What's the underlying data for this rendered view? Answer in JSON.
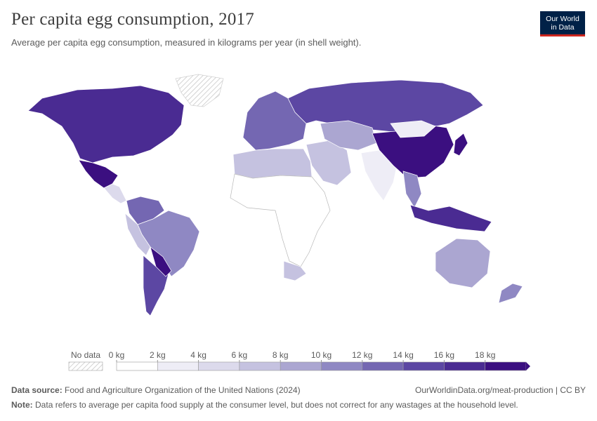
{
  "header": {
    "title": "Per capita egg consumption, 2017",
    "subtitle": "Average per capita egg consumption, measured in kilograms per year (in shell weight).",
    "logo_line1": "Our World",
    "logo_line2": "in Data"
  },
  "legend": {
    "no_data_label": "No data",
    "bins": [
      "0 kg",
      "2 kg",
      "4 kg",
      "6 kg",
      "8 kg",
      "10 kg",
      "12 kg",
      "14 kg",
      "16 kg",
      "18 kg"
    ],
    "colors": [
      "#ffffff",
      "#eeedf6",
      "#dcdaec",
      "#c5c2e0",
      "#aba6d1",
      "#8f88c3",
      "#7467b2",
      "#5c47a3",
      "#4a2b92",
      "#3b0f80"
    ]
  },
  "footer": {
    "source_label": "Data source:",
    "source_text": "Food and Agriculture Organization of the United Nations (2024)",
    "url_text": "OurWorldinData.org/meat-production | CC BY",
    "note_label": "Note:",
    "note_text": "Data refers to average per capita food supply at the consumer level, but does not correct for any wastages at the household level."
  },
  "regions": [
    {
      "name": "canada-usa",
      "level": 8
    },
    {
      "name": "mexico",
      "level": 9
    },
    {
      "name": "greenland",
      "level": -1
    },
    {
      "name": "central-america",
      "level": 2
    },
    {
      "name": "colombia-venezuela",
      "level": 6
    },
    {
      "name": "brazil",
      "level": 5
    },
    {
      "name": "peru-bolivia",
      "level": 3
    },
    {
      "name": "argentina",
      "level": 7
    },
    {
      "name": "paraguay",
      "level": 9
    },
    {
      "name": "europe",
      "level": 6
    },
    {
      "name": "russia",
      "level": 7
    },
    {
      "name": "north-africa",
      "level": 3
    },
    {
      "name": "sub-saharan-africa",
      "level": 0
    },
    {
      "name": "south-africa",
      "level": 3
    },
    {
      "name": "middle-east",
      "level": 3
    },
    {
      "name": "central-asia",
      "level": 4
    },
    {
      "name": "india",
      "level": 1
    },
    {
      "name": "china",
      "level": 9
    },
    {
      "name": "mongolia",
      "level": 1
    },
    {
      "name": "japan",
      "level": 9
    },
    {
      "name": "southeast-asia",
      "level": 5
    },
    {
      "name": "malaysia-indonesia",
      "level": 8
    },
    {
      "name": "australia",
      "level": 4
    },
    {
      "name": "new-zealand",
      "level": 5
    }
  ]
}
